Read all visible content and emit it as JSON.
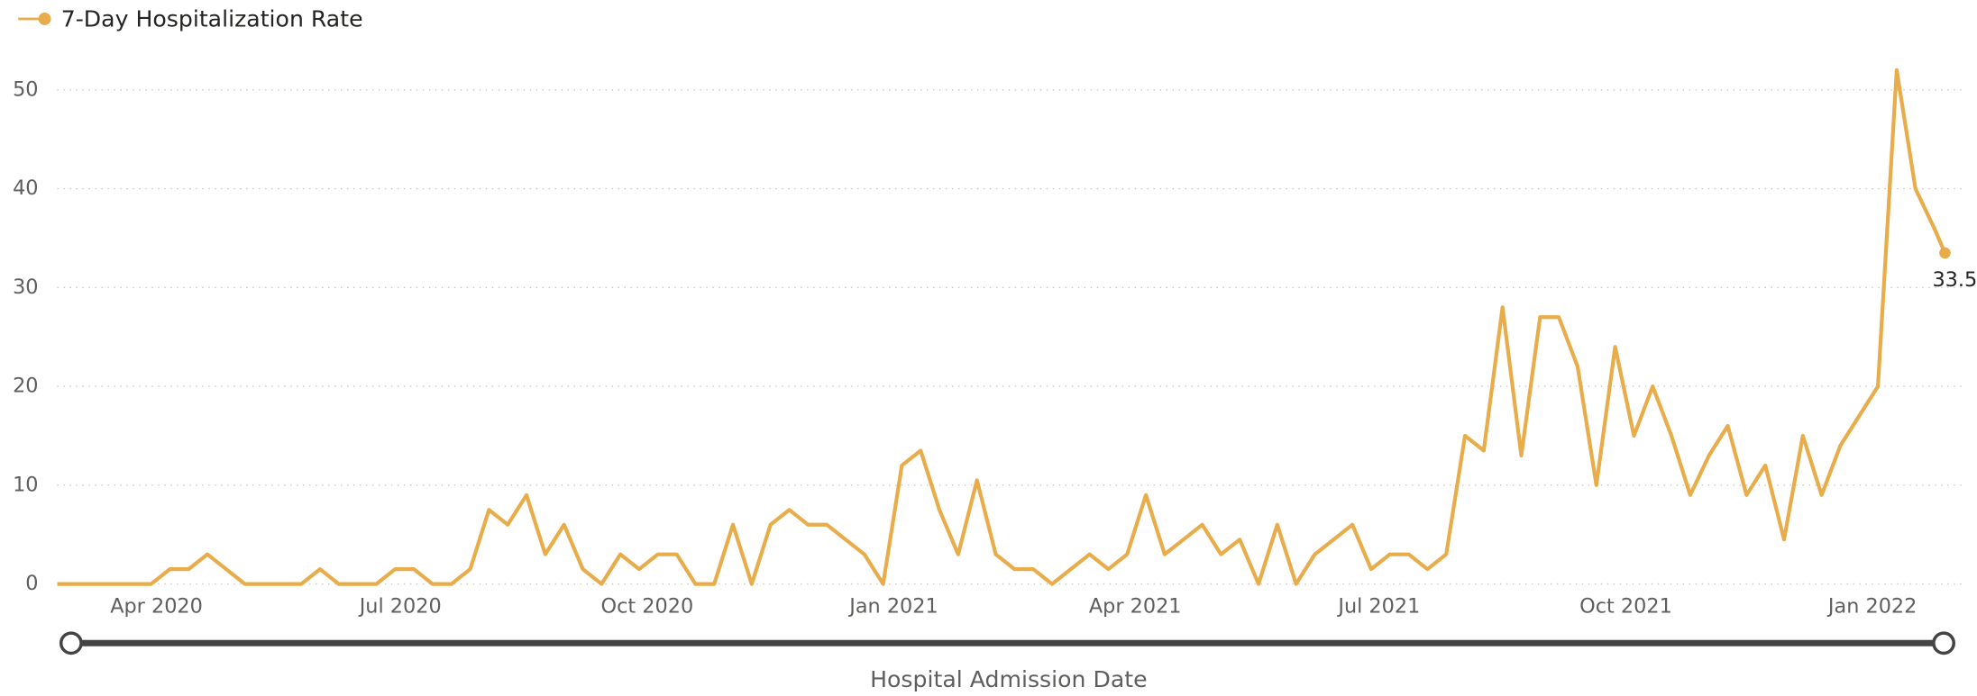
{
  "chart_data": {
    "type": "line",
    "x_label": "Hospital Admission Date",
    "x": [
      "2020-02-24",
      "2020-03-02",
      "2020-03-09",
      "2020-03-16",
      "2020-03-23",
      "2020-03-30",
      "2020-04-06",
      "2020-04-13",
      "2020-04-20",
      "2020-04-27",
      "2020-05-04",
      "2020-05-11",
      "2020-05-18",
      "2020-05-25",
      "2020-06-01",
      "2020-06-08",
      "2020-06-15",
      "2020-06-22",
      "2020-06-29",
      "2020-07-06",
      "2020-07-13",
      "2020-07-20",
      "2020-07-27",
      "2020-08-03",
      "2020-08-10",
      "2020-08-17",
      "2020-08-24",
      "2020-08-31",
      "2020-09-07",
      "2020-09-14",
      "2020-09-21",
      "2020-09-28",
      "2020-10-05",
      "2020-10-12",
      "2020-10-19",
      "2020-10-26",
      "2020-11-02",
      "2020-11-09",
      "2020-11-16",
      "2020-11-23",
      "2020-11-30",
      "2020-12-07",
      "2020-12-14",
      "2020-12-21",
      "2020-12-28",
      "2021-01-04",
      "2021-01-11",
      "2021-01-18",
      "2021-01-25",
      "2021-02-01",
      "2021-02-08",
      "2021-02-15",
      "2021-02-22",
      "2021-03-01",
      "2021-03-08",
      "2021-03-15",
      "2021-03-22",
      "2021-03-29",
      "2021-04-05",
      "2021-04-12",
      "2021-04-19",
      "2021-04-26",
      "2021-05-03",
      "2021-05-10",
      "2021-05-17",
      "2021-05-24",
      "2021-05-31",
      "2021-06-07",
      "2021-06-14",
      "2021-06-21",
      "2021-06-28",
      "2021-07-05",
      "2021-07-12",
      "2021-07-19",
      "2021-07-26",
      "2021-08-02",
      "2021-08-09",
      "2021-08-16",
      "2021-08-23",
      "2021-08-30",
      "2021-09-06",
      "2021-09-13",
      "2021-09-20",
      "2021-09-27",
      "2021-10-04",
      "2021-10-11",
      "2021-10-18",
      "2021-10-25",
      "2021-11-01",
      "2021-11-08",
      "2021-11-15",
      "2021-11-22",
      "2021-11-29",
      "2021-12-06",
      "2021-12-13",
      "2021-12-20",
      "2021-12-27",
      "2022-01-03",
      "2022-01-10",
      "2022-01-17",
      "2022-01-24",
      "2022-01-28"
    ],
    "series": [
      {
        "name": "7-Day Hospitalization Rate",
        "color": "#e8ad4a",
        "values": [
          0,
          0,
          0,
          0,
          0,
          0,
          1.5,
          1.5,
          3,
          1.5,
          0,
          0,
          0,
          0,
          1.5,
          0,
          0,
          0,
          1.5,
          1.5,
          0,
          0,
          1.5,
          7.5,
          6,
          9,
          3,
          6,
          1.5,
          0,
          3,
          1.5,
          3,
          3,
          0,
          0,
          6,
          0,
          6,
          7.5,
          6,
          6,
          4.5,
          3,
          0,
          12,
          13.5,
          7.5,
          3,
          10.5,
          3,
          1.5,
          1.5,
          0,
          1.5,
          3,
          1.5,
          3,
          9,
          3,
          4.5,
          6,
          3,
          4.5,
          0,
          6,
          0,
          3,
          4.5,
          6,
          1.5,
          3,
          3,
          1.5,
          3,
          15,
          13.5,
          28,
          13,
          27,
          27,
          22,
          10,
          24,
          15,
          20,
          15,
          9,
          13,
          16,
          9,
          12,
          4.5,
          15,
          9,
          14,
          17,
          20,
          52,
          40,
          36,
          33.5
        ],
        "value_labels": {
          "101": "33.5"
        }
      }
    ],
    "xlim": [
      "2020-02-24",
      "2022-01-28"
    ],
    "xticks": [
      {
        "value": "2020-04-01",
        "label": "Apr 2020"
      },
      {
        "value": "2020-07-01",
        "label": "Jul 2020"
      },
      {
        "value": "2020-10-01",
        "label": "Oct 2020"
      },
      {
        "value": "2021-01-01",
        "label": "Jan 2021"
      },
      {
        "value": "2021-04-01",
        "label": "Apr 2021"
      },
      {
        "value": "2021-07-01",
        "label": "Jul 2021"
      },
      {
        "value": "2021-10-01",
        "label": "Oct 2021"
      },
      {
        "value": "2022-01-01",
        "label": "Jan 2022"
      }
    ],
    "ylim": [
      0,
      54
    ],
    "yticks": [
      0,
      10,
      20,
      30,
      40,
      50
    ],
    "grid": true,
    "legend": "top-left"
  }
}
